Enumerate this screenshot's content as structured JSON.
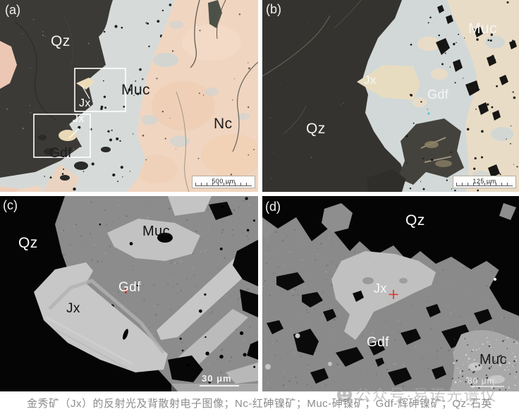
{
  "panels": {
    "a": {
      "tag": "(a)",
      "type": "reflected-light",
      "labels": {
        "qz": "Qz",
        "muc": "Muc",
        "jx_box1": "Jx",
        "jx_box2": "Jx",
        "gdf": "Gdf",
        "nc": "Nc"
      },
      "scale_bar": {
        "label": "500 μm"
      }
    },
    "b": {
      "tag": "(b)",
      "type": "reflected-light",
      "labels": {
        "muc": "Muc",
        "jx": "Jx",
        "gdf": "Gdf",
        "qz": "Qz"
      },
      "scale_bar": {
        "label": "125 μm"
      }
    },
    "c": {
      "tag": "(c)",
      "type": "BSE",
      "labels": {
        "qz": "Qz",
        "muc": "Muc",
        "gdf": "Gdf",
        "jx": "Jx"
      },
      "scale_bar": {
        "label": "30 μm"
      }
    },
    "d": {
      "tag": "(d)",
      "type": "BSE",
      "labels": {
        "qz": "Qz",
        "jx": "Jx",
        "gdf": "Gdf",
        "muc": "Muc"
      },
      "scale_bar": {
        "label": "80 μm"
      }
    }
  },
  "caption": "金秀矿（Jx）的反射光及背散射电子图像；Nc-红砷镍矿；Muc-砷镍矿；Gdf-辉砷镍矿；Qz-石英",
  "watermark": {
    "icon": "wechat-face-icon",
    "text": "公众号·易诺光谱仪"
  },
  "colors": {
    "nc_pink": "#f0d5c0",
    "muc_reflected_cream": "#e9dcc6",
    "gdf_reflected_gray": "#d4dad9",
    "jx_reflected_cream": "#e9dcba",
    "quartz_reflected_dark": "#3b3a37",
    "bse_background_black": "#050505",
    "bse_gdf_gray": "#8c8c8c",
    "bse_light_gray": "#c4c4c4",
    "analysis_marker_red": "#e03222"
  }
}
